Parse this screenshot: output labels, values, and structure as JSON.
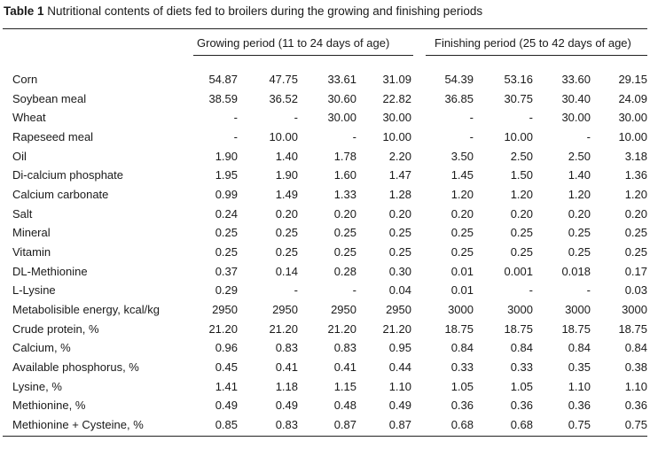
{
  "caption": {
    "label": "Table 1",
    "text": "Nutritional contents of diets fed to broilers during the growing and finishing periods"
  },
  "headers": {
    "growing": "Growing period (11 to 24 days of age)",
    "finishing": "Finishing period (25 to 42 days of age)"
  },
  "rows": [
    {
      "label": "Corn",
      "values": [
        "54.87",
        "47.75",
        "33.61",
        "31.09",
        "54.39",
        "53.16",
        "33.60",
        "29.15"
      ]
    },
    {
      "label": "Soybean meal",
      "values": [
        "38.59",
        "36.52",
        "30.60",
        "22.82",
        "36.85",
        "30.75",
        "30.40",
        "24.09"
      ]
    },
    {
      "label": "Wheat",
      "values": [
        "-",
        "-",
        "30.00",
        "30.00",
        "-",
        "-",
        "30.00",
        "30.00"
      ]
    },
    {
      "label": "Rapeseed meal",
      "values": [
        "-",
        "10.00",
        "-",
        "10.00",
        "-",
        "10.00",
        "-",
        "10.00"
      ]
    },
    {
      "label": "Oil",
      "values": [
        "1.90",
        "1.40",
        "1.78",
        "2.20",
        "3.50",
        "2.50",
        "2.50",
        "3.18"
      ]
    },
    {
      "label": "Di-calcium phosphate",
      "values": [
        "1.95",
        "1.90",
        "1.60",
        "1.47",
        "1.45",
        "1.50",
        "1.40",
        "1.36"
      ]
    },
    {
      "label": "Calcium carbonate",
      "values": [
        "0.99",
        "1.49",
        "1.33",
        "1.28",
        "1.20",
        "1.20",
        "1.20",
        "1.20"
      ]
    },
    {
      "label": "Salt",
      "values": [
        "0.24",
        "0.20",
        "0.20",
        "0.20",
        "0.20",
        "0.20",
        "0.20",
        "0.20"
      ]
    },
    {
      "label": "Mineral",
      "values": [
        "0.25",
        "0.25",
        "0.25",
        "0.25",
        "0.25",
        "0.25",
        "0.25",
        "0.25"
      ]
    },
    {
      "label": "Vitamin",
      "values": [
        "0.25",
        "0.25",
        "0.25",
        "0.25",
        "0.25",
        "0.25",
        "0.25",
        "0.25"
      ]
    },
    {
      "label": "DL-Methionine",
      "values": [
        "0.37",
        "0.14",
        "0.28",
        "0.30",
        "0.01",
        "0.001",
        "0.018",
        "0.17"
      ]
    },
    {
      "label": "L-Lysine",
      "values": [
        "0.29",
        "-",
        "-",
        "0.04",
        "0.01",
        "-",
        "-",
        "0.03"
      ]
    },
    {
      "label": "Metabolisible energy, kcal/kg",
      "values": [
        "2950",
        "2950",
        "2950",
        "2950",
        "3000",
        "3000",
        "3000",
        "3000"
      ]
    },
    {
      "label": "Crude protein, %",
      "values": [
        "21.20",
        "21.20",
        "21.20",
        "21.20",
        "18.75",
        "18.75",
        "18.75",
        "18.75"
      ]
    },
    {
      "label": "Calcium, %",
      "values": [
        "0.96",
        "0.83",
        "0.83",
        "0.95",
        "0.84",
        "0.84",
        "0.84",
        "0.84"
      ]
    },
    {
      "label": "Available phosphorus, %",
      "values": [
        "0.45",
        "0.41",
        "0.41",
        "0.44",
        "0.33",
        "0.33",
        "0.35",
        "0.38"
      ]
    },
    {
      "label": "Lysine, %",
      "values": [
        "1.41",
        "1.18",
        "1.15",
        "1.10",
        "1.05",
        "1.05",
        "1.10",
        "1.10"
      ]
    },
    {
      "label": "Methionine, %",
      "values": [
        "0.49",
        "0.49",
        "0.48",
        "0.49",
        "0.36",
        "0.36",
        "0.36",
        "0.36"
      ]
    },
    {
      "label": "Methionine + Cysteine, %",
      "values": [
        "0.85",
        "0.83",
        "0.87",
        "0.87",
        "0.68",
        "0.68",
        "0.75",
        "0.75"
      ]
    }
  ]
}
